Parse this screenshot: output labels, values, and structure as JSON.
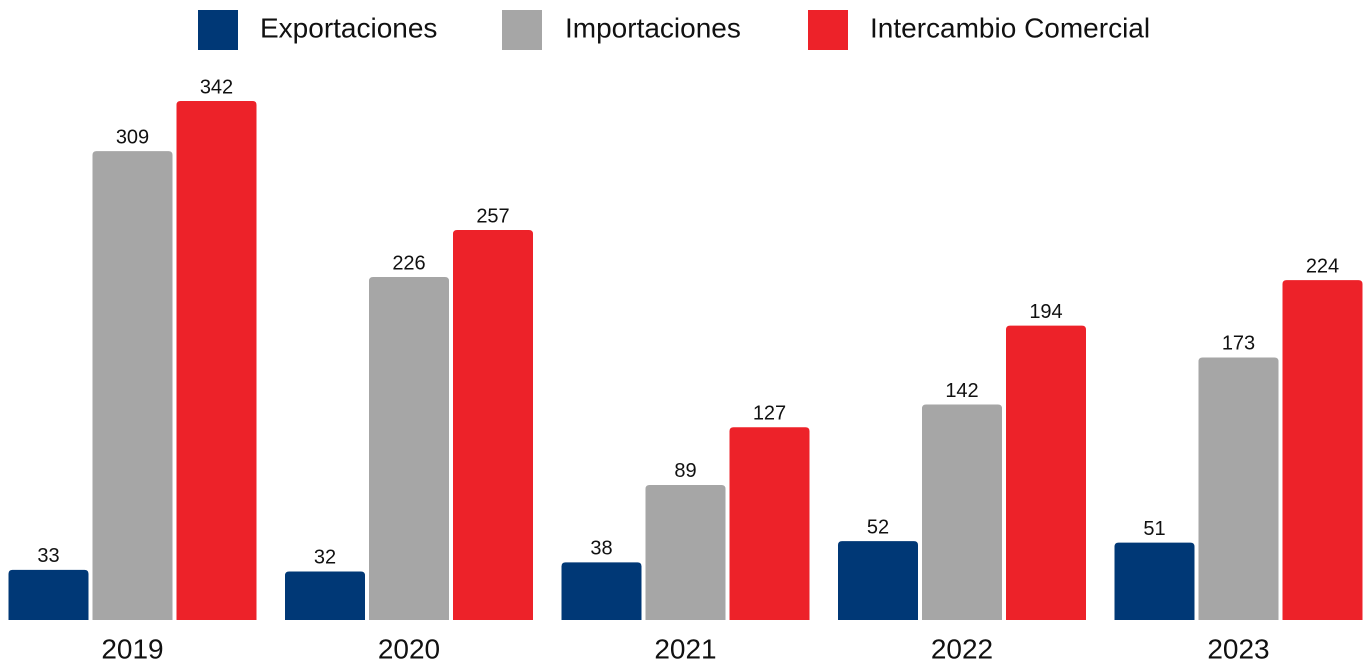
{
  "chart_data": {
    "type": "bar",
    "categories": [
      "2019",
      "2020",
      "2021",
      "2022",
      "2023"
    ],
    "series": [
      {
        "name": "Exportaciones",
        "color": "#003876",
        "values": [
          33,
          32,
          38,
          52,
          51
        ]
      },
      {
        "name": "Importaciones",
        "color": "#a6a6a6",
        "values": [
          309,
          226,
          89,
          142,
          173
        ]
      },
      {
        "name": "Intercambio Comercial",
        "color": "#ed2229",
        "values": [
          342,
          257,
          127,
          194,
          224
        ]
      }
    ]
  }
}
